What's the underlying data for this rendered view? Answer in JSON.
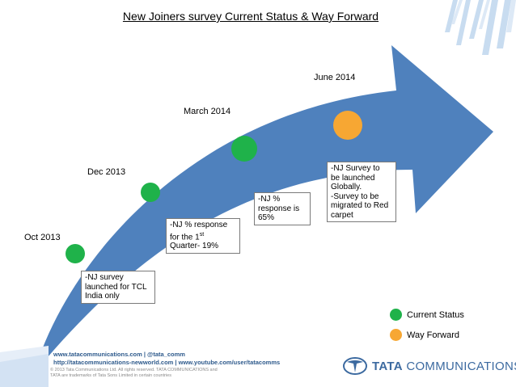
{
  "title": "New Joiners survey Current Status & Way Forward",
  "colors": {
    "arrow": "#4f81bd",
    "current_status": "#1fb24a",
    "way_forward": "#f7a733",
    "footer_blue": "#2e5a8c"
  },
  "milestones": [
    {
      "date": "Oct  2013",
      "status": "current",
      "note": [
        "-NJ survey",
        "launched for TCL",
        "India only"
      ]
    },
    {
      "date": "Dec 2013",
      "status": "current",
      "note": [
        "-NJ % response",
        "for the 1st",
        "Quarter- 19%"
      ]
    },
    {
      "date": "March 2014",
      "status": "current",
      "note": [
        "-NJ %",
        "response is",
        "65%"
      ]
    },
    {
      "date": "June 2014",
      "status": "way_forward",
      "note": [
        "-NJ Survey to",
        "be launched",
        "Globally.",
        "-Survey to be",
        "migrated to Red",
        "carpet"
      ]
    }
  ],
  "legend": [
    {
      "label": "Current Status",
      "color": "#1fb24a"
    },
    {
      "label": "Way Forward",
      "color": "#f7a733"
    }
  ],
  "footer": {
    "links_line1": "www.tatacommunications.com | @tata_comm",
    "links_line2": "http://tatacommunications-newworld.com | www.youtube.com/user/tatacomms",
    "legal_line1": "© 2013 Tata Communications Ltd. All rights reserved. TATA COMMUNICATIONS and",
    "legal_line2": "TATA are trademarks of Tata Sons Limited in certain countries",
    "logo_text_bold": "TATA",
    "logo_text": "COMMUNICATIONS"
  }
}
